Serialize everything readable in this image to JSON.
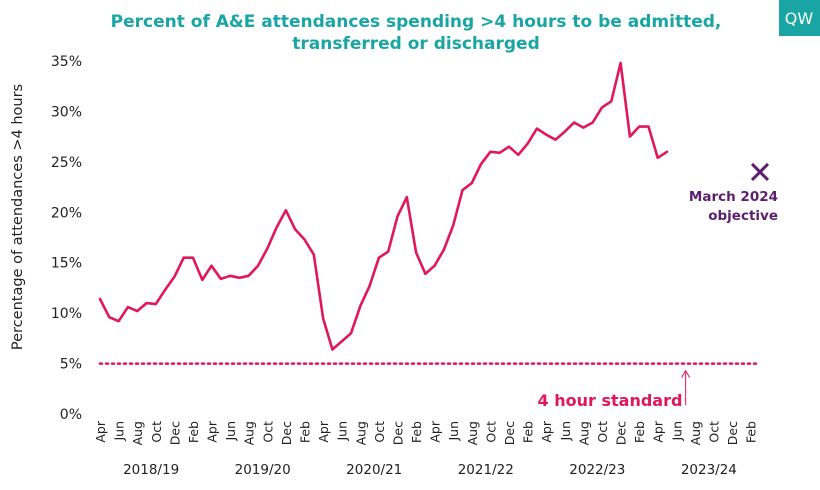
{
  "colors": {
    "title": "#1aa5a5",
    "line": "#e0175a",
    "standard": "#e0175a",
    "objective": "#5b1f6e",
    "logo_bg": "#1aa5a5",
    "logo_text": "#ffffff"
  },
  "logo": {
    "text": "QW"
  },
  "chart_data": {
    "type": "line",
    "title_line1": "Percent of A&E attendances spending >4 hours to be admitted,",
    "title_line2": "transferred or discharged",
    "ylabel": "Percentage of attendances >4 hours",
    "ylim": [
      0,
      35
    ],
    "yticks": [
      0,
      5,
      10,
      15,
      20,
      25,
      30,
      35
    ],
    "ytick_labels": [
      "0%",
      "5%",
      "10%",
      "15%",
      "20%",
      "25%",
      "30%",
      "35%"
    ],
    "x_month_labels": [
      "Apr",
      "Jun",
      "Aug",
      "Oct",
      "Dec",
      "Feb",
      "Apr",
      "Jun",
      "Aug",
      "Oct",
      "Dec",
      "Feb",
      "Apr",
      "Jun",
      "Aug",
      "Oct",
      "Dec",
      "Feb",
      "Apr",
      "Jun",
      "Aug",
      "Oct",
      "Dec",
      "Feb",
      "Apr",
      "Jun",
      "Aug",
      "Oct",
      "Dec",
      "Feb",
      "Apr",
      "Jun",
      "Aug",
      "Oct",
      "Dec",
      "Feb"
    ],
    "financial_years": [
      "2018/19",
      "2019/20",
      "2020/21",
      "2021/22",
      "2022/23",
      "2023/24"
    ],
    "n_months": 71,
    "series": [
      {
        "name": "Percent >4 hours",
        "values": [
          11.4,
          9.6,
          9.2,
          10.6,
          10.2,
          11.0,
          10.9,
          12.3,
          13.6,
          15.5,
          15.5,
          13.3,
          14.7,
          13.4,
          13.7,
          13.5,
          13.7,
          14.7,
          16.4,
          18.5,
          20.2,
          18.3,
          17.3,
          15.8,
          9.5,
          6.4,
          7.2,
          8.0,
          10.7,
          12.7,
          15.5,
          16.1,
          19.6,
          21.5,
          16.0,
          13.9,
          14.7,
          16.3,
          18.7,
          22.2,
          22.9,
          24.8,
          26.0,
          25.9,
          26.5,
          25.7,
          26.8,
          28.3,
          27.7,
          27.2,
          28.0,
          28.9,
          28.4,
          28.9,
          30.4,
          31.0,
          34.8,
          27.5,
          28.5,
          28.5,
          25.4,
          26.0
        ]
      }
    ],
    "reference_line": {
      "label": "4 hour standard",
      "value": 5
    },
    "target_point": {
      "label_line1": "March 2024",
      "label_line2": "objective",
      "month_index": 71,
      "value": 24
    }
  }
}
